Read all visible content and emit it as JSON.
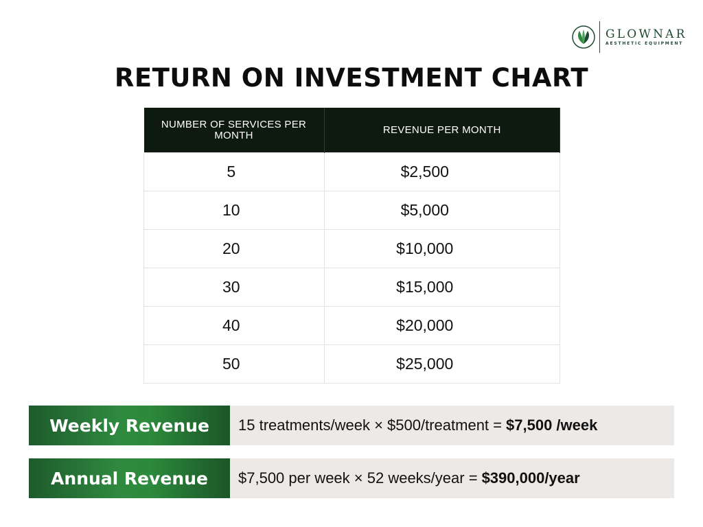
{
  "logo": {
    "name": "GLOWNAR",
    "tagline": "AESTHETIC EQUIPMENT",
    "icon": "leaf-lotus-icon",
    "color": "#1f4a32"
  },
  "title": "RETURN ON INVESTMENT CHART",
  "table": {
    "headers": [
      "NUMBER OF SERVICES PER MONTH",
      "REVENUE PER MONTH"
    ],
    "rows": [
      {
        "services": "5",
        "revenue": "$2,500"
      },
      {
        "services": "10",
        "revenue": "$5,000"
      },
      {
        "services": "20",
        "revenue": "$10,000"
      },
      {
        "services": "30",
        "revenue": "$15,000"
      },
      {
        "services": "40",
        "revenue": "$20,000"
      },
      {
        "services": "50",
        "revenue": "$25,000"
      }
    ]
  },
  "weekly": {
    "label": "Weekly Revenue",
    "formula": "15 treatments/week × $500/treatment =",
    "result": "$7,500 /week"
  },
  "annual": {
    "label": "Annual Revenue",
    "formula": "$7,500 per week × 52 weeks/year =",
    "result": "$390,000/year"
  },
  "colors": {
    "header_bg": "#0e1a10",
    "accent_green": "#2f8a3f",
    "value_bg": "#ede9e7"
  }
}
